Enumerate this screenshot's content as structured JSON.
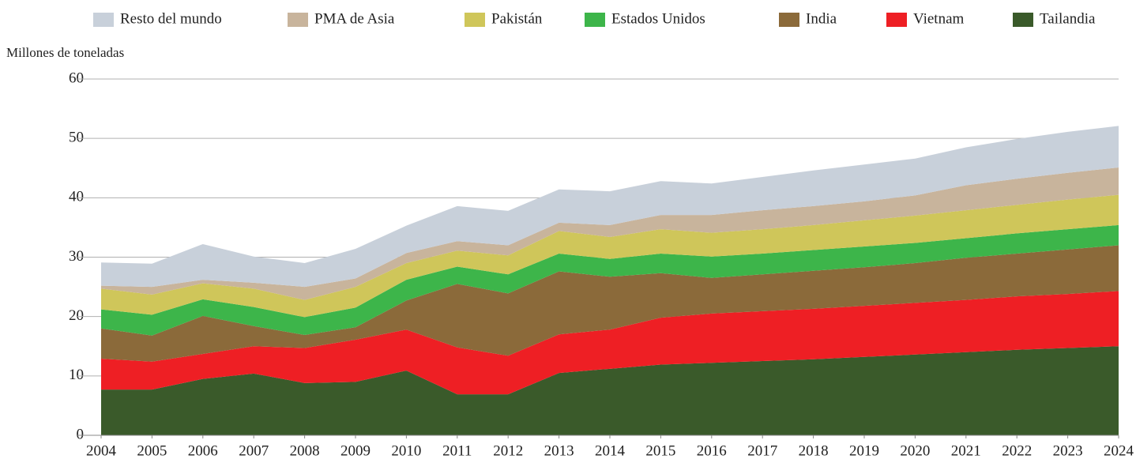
{
  "chart_data": {
    "type": "stacked_area",
    "y_label": "Millones de toneladas",
    "x": [
      2004,
      2005,
      2006,
      2007,
      2008,
      2009,
      2010,
      2011,
      2012,
      2013,
      2014,
      2015,
      2016,
      2017,
      2018,
      2019,
      2020,
      2021,
      2022,
      2023,
      2024
    ],
    "xlim": [
      2004,
      2024
    ],
    "xticks": [
      2004,
      2005,
      2006,
      2007,
      2008,
      2009,
      2010,
      2011,
      2012,
      2013,
      2014,
      2015,
      2016,
      2017,
      2018,
      2019,
      2020,
      2021,
      2022,
      2023,
      2024
    ],
    "ylim": [
      0,
      60
    ],
    "yticks": [
      0,
      10,
      20,
      30,
      40,
      50,
      60
    ],
    "grid": true,
    "series": [
      {
        "name": "Resto del mundo",
        "color": "#c8d0da",
        "values": [
          3.9,
          3.9,
          6.0,
          4.4,
          4.0,
          5.0,
          4.6,
          5.9,
          5.8,
          5.6,
          5.7,
          5.7,
          5.3,
          5.6,
          6.0,
          6.2,
          6.2,
          6.4,
          6.7,
          6.9,
          7.0
        ]
      },
      {
        "name": "PMA de Asia",
        "color": "#c8b49c",
        "values": [
          0.5,
          1.3,
          0.6,
          1.0,
          2.2,
          1.4,
          1.7,
          1.6,
          1.7,
          1.4,
          2.0,
          2.4,
          3.0,
          3.2,
          3.2,
          3.2,
          3.4,
          4.2,
          4.4,
          4.5,
          4.6
        ]
      },
      {
        "name": "Pakistán",
        "color": "#cfc65a",
        "values": [
          3.5,
          3.4,
          2.7,
          3.1,
          2.9,
          3.5,
          2.8,
          2.7,
          3.2,
          3.8,
          3.7,
          4.1,
          4.0,
          4.1,
          4.2,
          4.4,
          4.6,
          4.7,
          4.8,
          5.0,
          5.1
        ]
      },
      {
        "name": "Estados Unidos",
        "color": "#3db54a",
        "values": [
          3.2,
          3.5,
          2.8,
          3.2,
          3.0,
          3.3,
          3.5,
          2.9,
          3.2,
          3.0,
          3.0,
          3.3,
          3.6,
          3.5,
          3.5,
          3.5,
          3.4,
          3.3,
          3.4,
          3.4,
          3.4
        ]
      },
      {
        "name": "India",
        "color": "#8b6a3a",
        "values": [
          5.1,
          4.4,
          6.4,
          3.4,
          2.2,
          2.1,
          4.9,
          10.7,
          10.5,
          10.6,
          8.9,
          7.5,
          6.0,
          6.2,
          6.4,
          6.5,
          6.7,
          7.1,
          7.2,
          7.5,
          7.7
        ]
      },
      {
        "name": "Vietnam",
        "color": "#ee1f24",
        "values": [
          5.2,
          4.7,
          4.2,
          4.6,
          5.9,
          7.1,
          6.9,
          7.9,
          6.5,
          6.5,
          6.6,
          7.9,
          8.3,
          8.4,
          8.5,
          8.6,
          8.7,
          8.8,
          9.0,
          9.1,
          9.3
        ]
      },
      {
        "name": "Tailandia",
        "color": "#3a5a2a",
        "values": [
          7.7,
          7.7,
          9.5,
          10.4,
          8.8,
          9.0,
          10.9,
          6.9,
          6.9,
          10.5,
          11.2,
          11.9,
          12.2,
          12.5,
          12.8,
          13.2,
          13.6,
          14.0,
          14.4,
          14.7,
          15.0
        ]
      }
    ]
  }
}
